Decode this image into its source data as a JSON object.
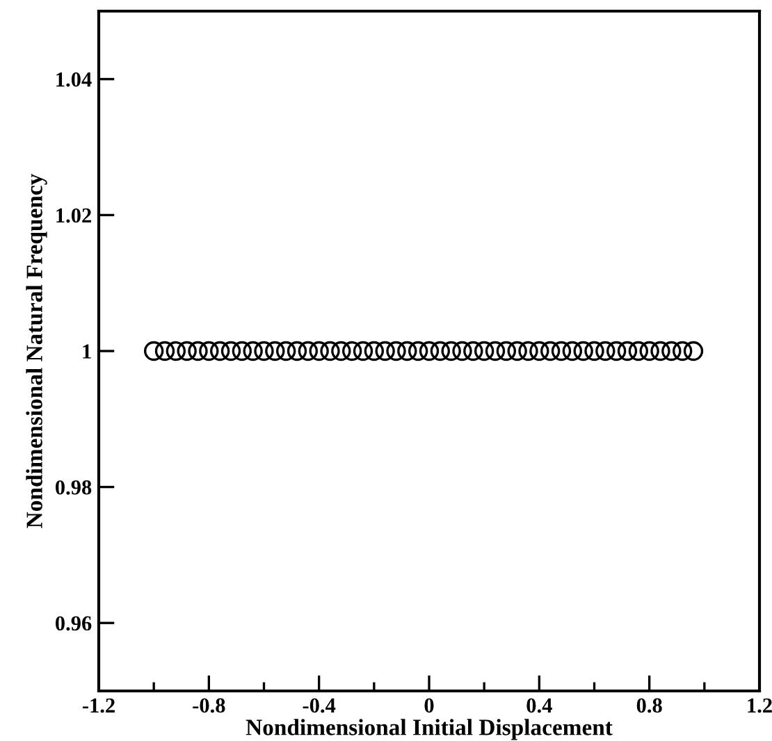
{
  "chart_data": {
    "type": "scatter",
    "xlabel": "Nondimensional Initial Displacement",
    "ylabel": "Nondimensional Natural Frequency",
    "x": [
      -1,
      -0.96,
      -0.92,
      -0.88,
      -0.84,
      -0.8,
      -0.76,
      -0.72,
      -0.68,
      -0.64,
      -0.6,
      -0.56,
      -0.52,
      -0.48,
      -0.44,
      -0.4,
      -0.36,
      -0.32,
      -0.28,
      -0.24,
      -0.2,
      -0.16,
      -0.12,
      -0.08,
      -0.04,
      0,
      0.04,
      0.08,
      0.12,
      0.16,
      0.2,
      0.24,
      0.28,
      0.32,
      0.36,
      0.4,
      0.44,
      0.48,
      0.52,
      0.56,
      0.6,
      0.64,
      0.68,
      0.72,
      0.76,
      0.8,
      0.84,
      0.88,
      0.92,
      0.96
    ],
    "values": [
      1,
      1,
      1,
      1,
      1,
      1,
      1,
      1,
      1,
      1,
      1,
      1,
      1,
      1,
      1,
      1,
      1,
      1,
      1,
      1,
      1,
      1,
      1,
      1,
      1,
      1,
      1,
      1,
      1,
      1,
      1,
      1,
      1,
      1,
      1,
      1,
      1,
      1,
      1,
      1,
      1,
      1,
      1,
      1,
      1,
      1,
      1,
      1,
      1,
      1
    ],
    "color": "#000000",
    "marker": "circle",
    "xlim": [
      -1.2,
      1.2
    ],
    "xticks": [
      -1.2,
      {
        "value": -1,
        "label": null
      },
      -0.8,
      {
        "value": -0.6,
        "label": null
      },
      -0.4,
      {
        "value": -0.2,
        "label": null
      },
      0,
      {
        "value": 0.2,
        "label": null
      },
      0.4,
      {
        "value": 0.6,
        "label": null
      },
      0.8,
      {
        "value": 1,
        "label": null
      },
      1.2
    ],
    "ylim": [
      0.95,
      1.05
    ],
    "yticks": [
      0.96,
      0.98,
      1,
      1.02,
      1.04
    ],
    "grid": false
  }
}
